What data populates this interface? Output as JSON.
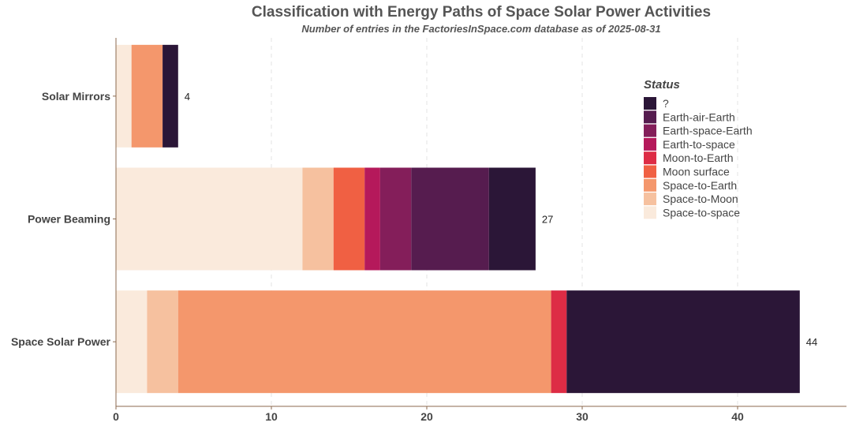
{
  "chart_data": {
    "type": "bar",
    "orientation": "horizontal",
    "stacked": true,
    "title": "Classification with Energy Paths of Space Solar Power Activities",
    "subtitle": "Number of entries in the FactoriesInSpace.com database as of 2025-08-31",
    "xlabel": "",
    "ylabel": "",
    "xlim": [
      0,
      47
    ],
    "xticks": [
      0,
      10,
      20,
      30,
      40
    ],
    "grid": "vertical dashed",
    "legend": {
      "title": "Status",
      "placement": "top-right"
    },
    "categories": [
      "Solar Mirrors",
      "Power Beaming",
      "Space Solar Power"
    ],
    "totals": [
      4,
      27,
      44
    ],
    "series": [
      {
        "name": "Space-to-space",
        "color": "#faeadc",
        "values": [
          1,
          12,
          2
        ]
      },
      {
        "name": "Space-to-Moon",
        "color": "#f6c19f",
        "values": [
          0,
          2,
          2
        ]
      },
      {
        "name": "Space-to-Earth",
        "color": "#f4976c",
        "values": [
          2,
          0,
          24
        ]
      },
      {
        "name": "Moon surface",
        "color": "#f06043",
        "values": [
          0,
          2,
          0
        ]
      },
      {
        "name": "Moon-to-Earth",
        "color": "#dd2c45",
        "values": [
          0,
          0,
          1
        ]
      },
      {
        "name": "Earth-to-space",
        "color": "#b5195b",
        "values": [
          0,
          1,
          0
        ]
      },
      {
        "name": "Earth-space-Earth",
        "color": "#841e5a",
        "values": [
          0,
          2,
          0
        ]
      },
      {
        "name": "Earth-air-Earth",
        "color": "#561c4f",
        "values": [
          0,
          5,
          0
        ]
      },
      {
        "name": "?",
        "color": "#2b1637",
        "values": [
          1,
          3,
          15
        ]
      }
    ]
  }
}
